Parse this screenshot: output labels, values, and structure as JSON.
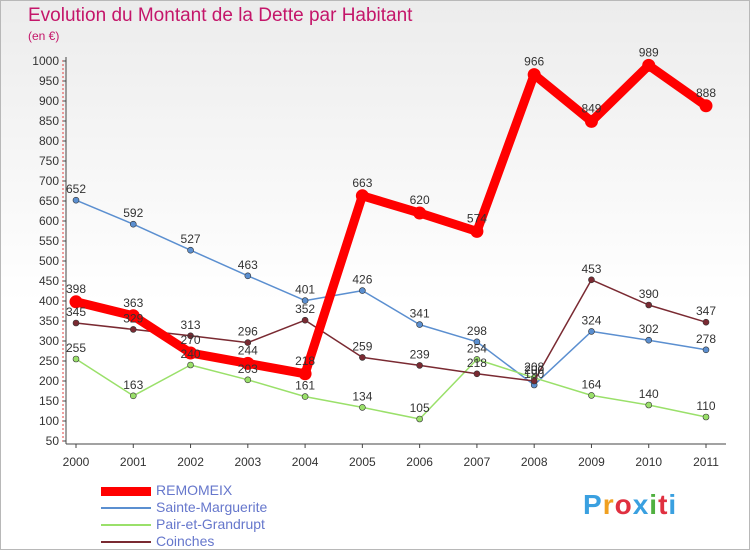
{
  "header": {
    "title": "Evolution du Montant de la Dette par Habitant",
    "subtitle": "(en €)"
  },
  "logo": {
    "text": "Proxiti",
    "letter_colors": [
      "#3aa0e0",
      "#f0a020",
      "#e03040",
      "#3aa0e0",
      "#50b040",
      "#e03040",
      "#3aa0e0"
    ]
  },
  "chart_data": {
    "type": "line",
    "title": "Evolution du Montant de la Dette par Habitant",
    "ylabel": "(en €)",
    "xlabel": "",
    "x": [
      "2000",
      "2001",
      "2002",
      "2003",
      "2004",
      "2005",
      "2006",
      "2007",
      "2008",
      "2009",
      "2010",
      "2011"
    ],
    "ylim": [
      50,
      1000
    ],
    "yticks": [
      50,
      100,
      150,
      200,
      250,
      300,
      350,
      400,
      450,
      500,
      550,
      600,
      650,
      700,
      750,
      800,
      850,
      900,
      950,
      1000
    ],
    "grid": false,
    "legend_position": "bottom-left",
    "series": [
      {
        "name": "REMOMEIX",
        "color": "#ff0000",
        "values": [
          398,
          363,
          270,
          244,
          218,
          663,
          620,
          574,
          966,
          849,
          989,
          888
        ],
        "labels": [
          "398",
          "363",
          "270",
          "244",
          "218",
          "663",
          "620",
          "574",
          "966",
          "849",
          "989",
          "888"
        ]
      },
      {
        "name": "Sainte-Marguerite",
        "color": "#5b8fd0",
        "values": [
          652,
          592,
          527,
          463,
          401,
          426,
          341,
          298,
          190,
          324,
          302,
          278
        ],
        "labels": [
          "652",
          "592",
          "527",
          "463",
          "401",
          "426",
          "341",
          "298",
          "190",
          "324",
          "302",
          "278"
        ]
      },
      {
        "name": "Pair-et-Grandrupt",
        "color": "#9ae06a",
        "values": [
          255,
          163,
          240,
          203,
          161,
          134,
          105,
          254,
          208,
          164,
          140,
          110
        ],
        "labels": [
          "255",
          "163",
          "240",
          "203",
          "161",
          "134",
          "105",
          "254",
          "208",
          "164",
          "140",
          "110"
        ]
      },
      {
        "name": "Coinches",
        "color": "#7a2a32",
        "values": [
          345,
          329,
          313,
          296,
          352,
          259,
          239,
          218,
          200,
          453,
          390,
          347
        ],
        "labels": [
          "345",
          "329",
          "313",
          "296",
          "352",
          "259",
          "239",
          "218",
          "200",
          "453",
          "390",
          "347"
        ]
      }
    ]
  }
}
